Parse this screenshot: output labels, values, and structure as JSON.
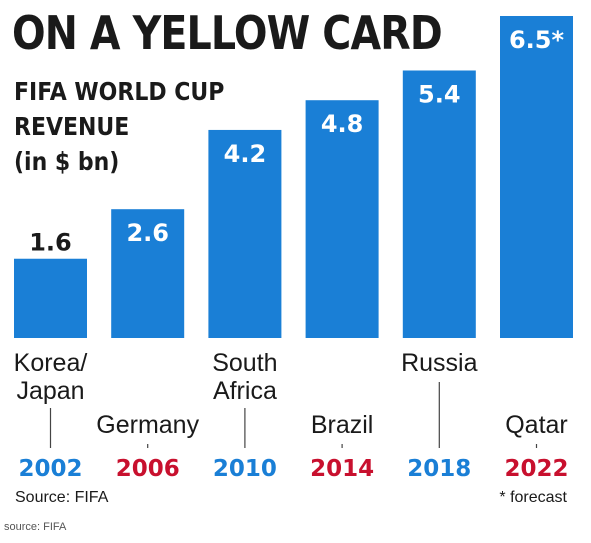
{
  "headline": "ON A YELLOW CARD",
  "subtitle_lines": [
    "FIFA WORLD CUP",
    "REVENUE",
    "(in $ bn)"
  ],
  "source": "Source: FIFA",
  "footnote": "* forecast",
  "outer_source": "source: FIFA",
  "colors": {
    "bar": "#1a7fd6",
    "year_blue": "#1a7fd6",
    "year_red": "#c8102e",
    "value_on_bar": "#ffffff",
    "value_above_bar": "#1a1a1a"
  },
  "chart_data": {
    "type": "bar",
    "title": "FIFA WORLD CUP REVENUE (in $ bn)",
    "categories": [
      "2002",
      "2006",
      "2010",
      "2014",
      "2018",
      "2022"
    ],
    "hosts": [
      [
        "Korea/",
        "Japan"
      ],
      [
        "Germany"
      ],
      [
        "South",
        "Africa"
      ],
      [
        "Brazil"
      ],
      [
        "Russia"
      ],
      [
        "Qatar"
      ]
    ],
    "values": [
      1.6,
      2.6,
      4.2,
      4.8,
      5.4,
      6.5
    ],
    "value_labels": [
      "1.6",
      "2.6",
      "4.2",
      "4.8",
      "5.4",
      "6.5*"
    ],
    "year_colors": [
      "blue",
      "red",
      "blue",
      "red",
      "blue",
      "red"
    ],
    "ylim": [
      0,
      6.5
    ],
    "grid": false,
    "legend": "none",
    "xlabel": "",
    "ylabel": ""
  }
}
